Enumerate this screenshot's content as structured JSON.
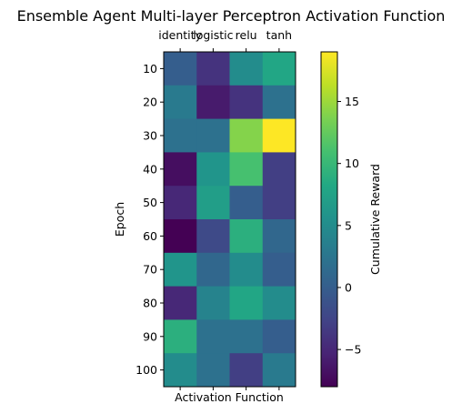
{
  "chart_data": {
    "type": "heatmap",
    "title": "Ensemble Agent Multi-layer Perceptron Activation Function",
    "xlabel": "Activation Function",
    "ylabel": "Epoch",
    "x_categories": [
      "identity",
      "logistic",
      "relu",
      "tanh"
    ],
    "y_categories": [
      "10",
      "20",
      "30",
      "40",
      "50",
      "60",
      "70",
      "80",
      "90",
      "100"
    ],
    "values": [
      [
        0,
        -4,
        5,
        8
      ],
      [
        3,
        -6,
        -4,
        2
      ],
      [
        2,
        2,
        14,
        19
      ],
      [
        -7,
        6,
        11,
        -3
      ],
      [
        -5,
        7,
        0,
        -3
      ],
      [
        -8,
        -2,
        9,
        1
      ],
      [
        6,
        1,
        5,
        0
      ],
      [
        -5,
        4,
        8,
        5
      ],
      [
        9,
        2,
        2,
        0
      ],
      [
        5,
        2,
        -3,
        3
      ]
    ],
    "colormap": "viridis",
    "colorbar": {
      "label": "Cumulative Reward",
      "range": [
        -8,
        19
      ],
      "ticks": [
        "−5",
        "0",
        "5",
        "10",
        "15"
      ],
      "tick_values": [
        -5,
        0,
        5,
        10,
        15
      ]
    },
    "x_ticks_position": "top"
  }
}
